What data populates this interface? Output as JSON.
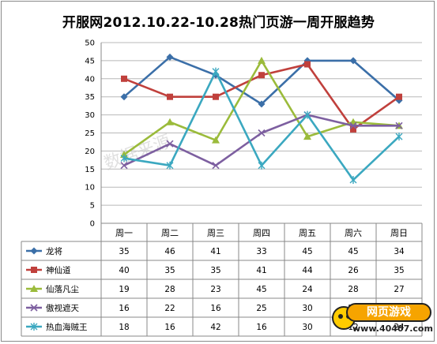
{
  "chart_data": {
    "type": "line",
    "title": "开服网2012.10.22-10.28热门页游一周开服趋势",
    "categories": [
      "周一",
      "周二",
      "周三",
      "周四",
      "周五",
      "周六",
      "周日"
    ],
    "ylim": [
      0,
      50
    ],
    "yticks": [
      0,
      5,
      10,
      15,
      20,
      25,
      30,
      35,
      40,
      45,
      50
    ],
    "grid": true,
    "legend_placement": "data-table-left",
    "series": [
      {
        "name": "龙将",
        "values": [
          35,
          46,
          41,
          33,
          45,
          45,
          34
        ],
        "color": "#3b6fa8",
        "marker": "diamond"
      },
      {
        "name": "神仙道",
        "values": [
          40,
          35,
          35,
          41,
          44,
          26,
          35
        ],
        "color": "#c0403c",
        "marker": "square"
      },
      {
        "name": "仙落凡尘",
        "values": [
          19,
          28,
          23,
          45,
          24,
          28,
          27
        ],
        "color": "#9bbb3b",
        "marker": "triangle"
      },
      {
        "name": "傲视遮天",
        "values": [
          16,
          22,
          16,
          25,
          30,
          27,
          27
        ],
        "color": "#7d5fa0",
        "marker": "x"
      },
      {
        "name": "热血海贼王",
        "values": [
          18,
          16,
          42,
          16,
          30,
          12,
          24
        ],
        "color": "#3ba8c0",
        "marker": "star"
      }
    ]
  },
  "watermark": "数据来源",
  "logo": {
    "badge": "网页游戏",
    "url": "www.40407.com"
  }
}
